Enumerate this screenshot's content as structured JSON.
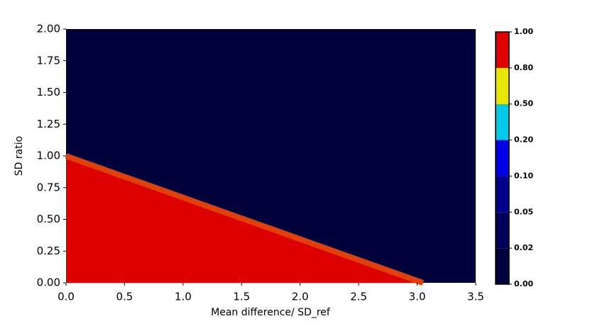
{
  "chart_data": {
    "type": "contour",
    "xlabel": "Mean difference/ SD_ref",
    "ylabel": "SD ratio",
    "xlim": [
      0,
      3.5
    ],
    "ylim": [
      0,
      2.0
    ],
    "xticks": [
      {
        "value": 0,
        "label": "0.0"
      },
      0.5,
      {
        "value": 1,
        "label": "1.0"
      },
      1.5,
      {
        "value": 2,
        "label": "2.0"
      },
      2.5,
      {
        "value": 3,
        "label": "3.0"
      },
      3.5
    ],
    "yticks": [
      {
        "value": 0,
        "label": "0.00"
      },
      0.25,
      {
        "value": 0.5,
        "label": "0.50"
      },
      0.75,
      {
        "value": 1,
        "label": "1.00"
      },
      1.25,
      {
        "value": 1.5,
        "label": "1.50"
      },
      1.75,
      {
        "value": 2,
        "label": "2.00"
      }
    ],
    "background_color": "#00003a",
    "regions": [
      {
        "color": "#dc0000",
        "x": [
          0,
          0,
          3.05
        ],
        "y": [
          0,
          1.0,
          0
        ]
      }
    ],
    "boundary": {
      "color": "#e2400a",
      "x": [
        0,
        3.05
      ],
      "y": [
        1.0,
        0
      ]
    },
    "colorbar": {
      "ticks": [
        {
          "value": 0,
          "label": "0.00"
        },
        {
          "value": 0.02,
          "label": "0.02"
        },
        {
          "value": 0.05,
          "label": "0.05"
        },
        {
          "value": 0.1,
          "label": "0.10"
        },
        {
          "value": 0.2,
          "label": "0.20"
        },
        {
          "value": 0.5,
          "label": "0.50"
        },
        {
          "value": 0.8,
          "label": "0.80"
        },
        {
          "value": 1,
          "label": "1.00"
        }
      ],
      "colors": [
        "#00003a",
        "#00005a",
        "#000088",
        "#0000e6",
        "#00c8e6",
        "#e6e600",
        "#dc0000"
      ]
    }
  }
}
